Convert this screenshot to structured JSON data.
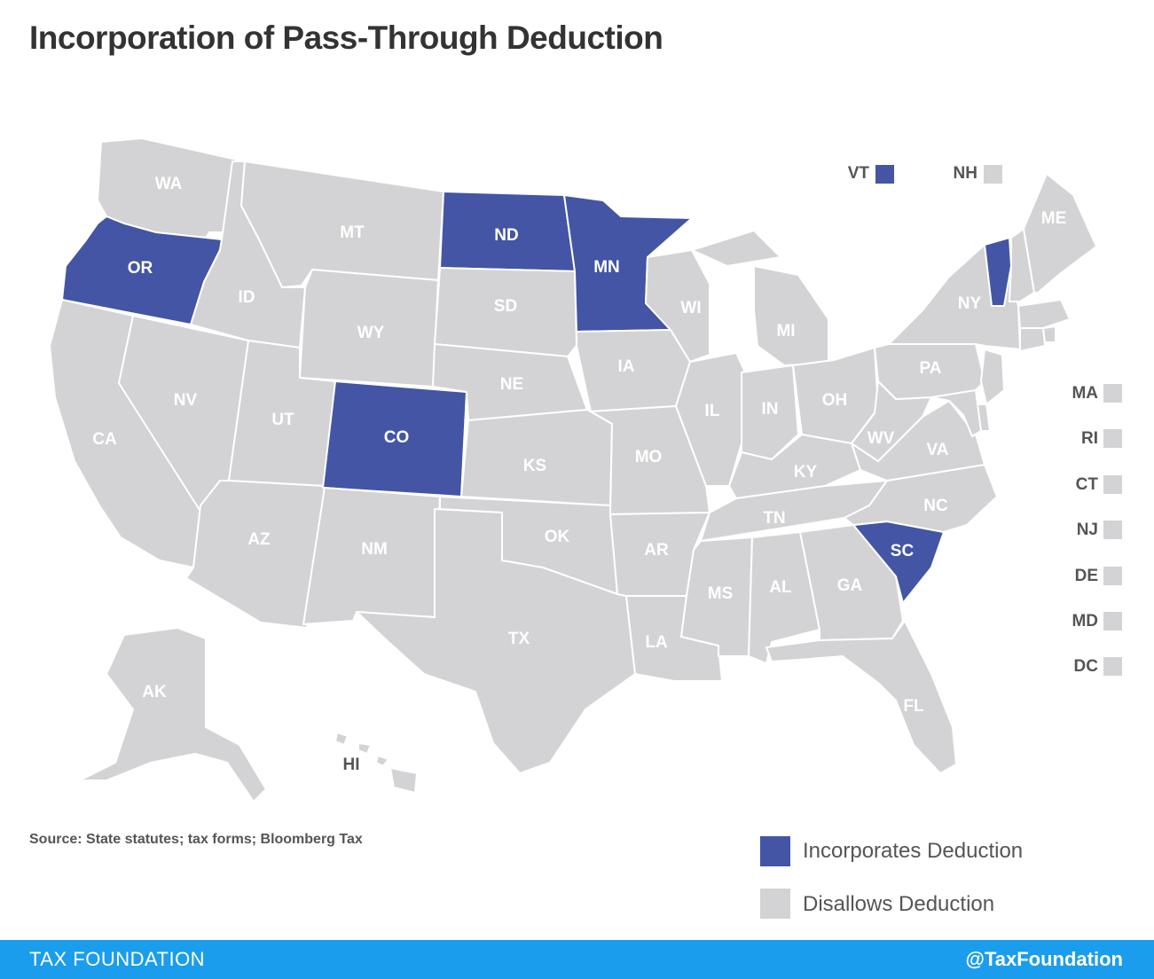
{
  "title": "Incorporation of Pass-Through Deduction",
  "colors": {
    "incorporates": "#4355a4",
    "disallows": "#d3d3d5",
    "label_light": "#ffffff",
    "label_dark_bg": "#ffffff",
    "footer": "#1a9ded"
  },
  "legend": {
    "incorporates_label": "Incorporates Deduction",
    "disallows_label": "Disallows Deduction"
  },
  "states": {
    "WA": {
      "label": "WA",
      "status": "disallows"
    },
    "OR": {
      "label": "OR",
      "status": "incorporates"
    },
    "CA": {
      "label": "CA",
      "status": "disallows"
    },
    "NV": {
      "label": "NV",
      "status": "disallows"
    },
    "ID": {
      "label": "ID",
      "status": "disallows"
    },
    "MT": {
      "label": "MT",
      "status": "disallows"
    },
    "WY": {
      "label": "WY",
      "status": "disallows"
    },
    "UT": {
      "label": "UT",
      "status": "disallows"
    },
    "AZ": {
      "label": "AZ",
      "status": "disallows"
    },
    "CO": {
      "label": "CO",
      "status": "incorporates"
    },
    "NM": {
      "label": "NM",
      "status": "disallows"
    },
    "ND": {
      "label": "ND",
      "status": "incorporates"
    },
    "SD": {
      "label": "SD",
      "status": "disallows"
    },
    "NE": {
      "label": "NE",
      "status": "disallows"
    },
    "KS": {
      "label": "KS",
      "status": "disallows"
    },
    "OK": {
      "label": "OK",
      "status": "disallows"
    },
    "TX": {
      "label": "TX",
      "status": "disallows"
    },
    "MN": {
      "label": "MN",
      "status": "incorporates"
    },
    "IA": {
      "label": "IA",
      "status": "disallows"
    },
    "MO": {
      "label": "MO",
      "status": "disallows"
    },
    "AR": {
      "label": "AR",
      "status": "disallows"
    },
    "LA": {
      "label": "LA",
      "status": "disallows"
    },
    "WI": {
      "label": "WI",
      "status": "disallows"
    },
    "IL": {
      "label": "IL",
      "status": "disallows"
    },
    "MI": {
      "label": "MI",
      "status": "disallows"
    },
    "IN": {
      "label": "IN",
      "status": "disallows"
    },
    "OH": {
      "label": "OH",
      "status": "disallows"
    },
    "KY": {
      "label": "KY",
      "status": "disallows"
    },
    "TN": {
      "label": "TN",
      "status": "disallows"
    },
    "MS": {
      "label": "MS",
      "status": "disallows"
    },
    "AL": {
      "label": "AL",
      "status": "disallows"
    },
    "GA": {
      "label": "GA",
      "status": "disallows"
    },
    "FL": {
      "label": "FL",
      "status": "disallows"
    },
    "SC": {
      "label": "SC",
      "status": "incorporates"
    },
    "NC": {
      "label": "NC",
      "status": "disallows"
    },
    "VA": {
      "label": "VA",
      "status": "disallows"
    },
    "WV": {
      "label": "WV",
      "status": "disallows"
    },
    "PA": {
      "label": "PA",
      "status": "disallows"
    },
    "NY": {
      "label": "NY",
      "status": "disallows"
    },
    "VT": {
      "label": "VT",
      "status": "incorporates"
    },
    "NH": {
      "label": "NH",
      "status": "disallows"
    },
    "ME": {
      "label": "ME",
      "status": "disallows"
    },
    "MA": {
      "label": "MA",
      "status": "disallows"
    },
    "RI": {
      "label": "RI",
      "status": "disallows"
    },
    "CT": {
      "label": "CT",
      "status": "disallows"
    },
    "NJ": {
      "label": "NJ",
      "status": "disallows"
    },
    "DE": {
      "label": "DE",
      "status": "disallows"
    },
    "MD": {
      "label": "MD",
      "status": "disallows"
    },
    "DC": {
      "label": "DC",
      "status": "disallows"
    },
    "AK": {
      "label": "AK",
      "status": "disallows"
    },
    "HI": {
      "label": "HI",
      "status": "disallows"
    }
  },
  "source": "Source:  State statutes; tax forms; Bloomberg Tax",
  "footer": {
    "left": "TAX FOUNDATION",
    "right": "@TaxFoundation"
  }
}
